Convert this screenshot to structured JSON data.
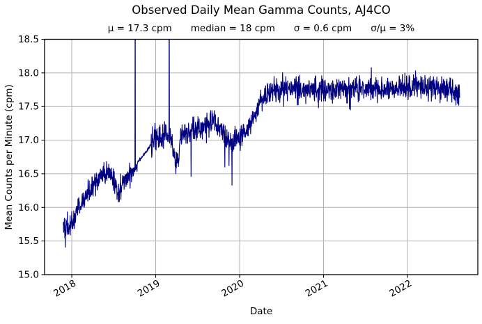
{
  "chart_data": {
    "type": "line",
    "title": "Observed Daily Mean Gamma Counts, AJ4CO",
    "stats": [
      "μ = 17.3 cpm",
      "median = 18 cpm",
      "σ = 0.6 cpm",
      "σ/μ = 3%"
    ],
    "xlabel": "Date",
    "ylabel": "Mean Counts per Minute (cpm)",
    "x_ticks": [
      2018,
      2019,
      2020,
      2021,
      2022
    ],
    "x_tick_rotation_deg": -30,
    "x_range": [
      2017.676,
      2022.838
    ],
    "ylim": [
      15.0,
      18.5
    ],
    "y_ticks": [
      "15.0",
      "15.5",
      "16.0",
      "16.5",
      "17.0",
      "17.5",
      "18.0",
      "18.5"
    ],
    "grid": true,
    "legend_position": "none",
    "colors": {
      "line": "#000080",
      "grid": "#b0b0b0",
      "frame": "#000000",
      "background": "#ffffff",
      "text": "#000000"
    },
    "series": [
      {
        "name": "observed daily mean gamma counts",
        "x_start": 2017.898,
        "x_end": 2022.622,
        "samples_per_year": 365,
        "trend_anchors": [
          [
            2017.898,
            15.82
          ],
          [
            2017.92,
            15.68
          ],
          [
            2017.95,
            15.73
          ],
          [
            2017.98,
            15.7
          ],
          [
            2018.01,
            15.8
          ],
          [
            2018.06,
            15.95
          ],
          [
            2018.12,
            16.07
          ],
          [
            2018.2,
            16.22
          ],
          [
            2018.28,
            16.35
          ],
          [
            2018.35,
            16.45
          ],
          [
            2018.42,
            16.52
          ],
          [
            2018.48,
            16.45
          ],
          [
            2018.53,
            16.3
          ],
          [
            2018.58,
            16.27
          ],
          [
            2018.63,
            16.4
          ],
          [
            2018.68,
            16.48
          ],
          [
            2018.73,
            16.55
          ],
          [
            2018.78,
            16.67
          ],
          [
            2018.87,
            16.8
          ],
          [
            2018.945,
            16.93
          ],
          [
            2019.0,
            17.0
          ],
          [
            2019.08,
            17.07
          ],
          [
            2019.15,
            17.08
          ],
          [
            2019.19,
            17.0
          ],
          [
            2019.22,
            16.75
          ],
          [
            2019.26,
            16.65
          ],
          [
            2019.3,
            17.05
          ],
          [
            2019.4,
            17.12
          ],
          [
            2019.5,
            17.17
          ],
          [
            2019.6,
            17.22
          ],
          [
            2019.7,
            17.25
          ],
          [
            2019.78,
            17.15
          ],
          [
            2019.84,
            17.02
          ],
          [
            2019.9,
            16.92
          ],
          [
            2019.96,
            16.98
          ],
          [
            2020.02,
            17.05
          ],
          [
            2020.08,
            17.12
          ],
          [
            2020.14,
            17.28
          ],
          [
            2020.2,
            17.45
          ],
          [
            2020.26,
            17.58
          ],
          [
            2020.32,
            17.68
          ],
          [
            2020.4,
            17.74
          ],
          [
            2020.6,
            17.76
          ],
          [
            2021.0,
            17.75
          ],
          [
            2021.5,
            17.76
          ],
          [
            2022.0,
            17.78
          ],
          [
            2022.3,
            17.8
          ],
          [
            2022.5,
            17.76
          ],
          [
            2022.622,
            17.68
          ]
        ],
        "noise_sigma_eras": [
          {
            "from": 2017.898,
            "to": 2018.78,
            "sigma": 0.085
          },
          {
            "from": 2018.78,
            "to": 2018.945,
            "sigma": 0.012
          },
          {
            "from": 2018.945,
            "to": 2020.05,
            "sigma": 0.09
          },
          {
            "from": 2020.05,
            "to": 2020.35,
            "sigma": 0.075
          },
          {
            "from": 2020.35,
            "to": 2022.63,
            "sigma": 0.093
          }
        ],
        "spikes_up": [
          {
            "x": 2018.755,
            "value": 19.5
          },
          {
            "x": 2019.162,
            "value": 19.5
          }
        ],
        "spikes_down": [
          {
            "x": 2017.928,
            "value": 15.58
          },
          {
            "x": 2017.962,
            "value": 15.6
          },
          {
            "x": 2018.555,
            "value": 16.08
          },
          {
            "x": 2018.585,
            "value": 16.12
          },
          {
            "x": 2019.24,
            "value": 16.5
          },
          {
            "x": 2019.421,
            "value": 16.46
          },
          {
            "x": 2019.825,
            "value": 16.6
          },
          {
            "x": 2019.872,
            "value": 16.62
          },
          {
            "x": 2019.908,
            "value": 16.33
          },
          {
            "x": 2020.94,
            "value": 17.48
          },
          {
            "x": 2021.32,
            "value": 17.45
          },
          {
            "x": 2022.61,
            "value": 17.52
          }
        ],
        "noise_seed": 42
      }
    ]
  }
}
